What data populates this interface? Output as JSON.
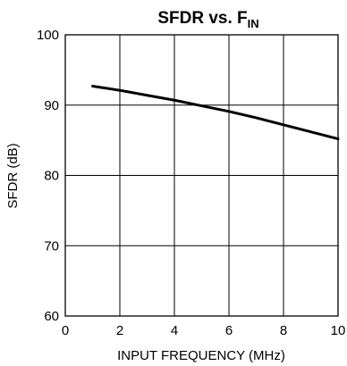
{
  "chart_data": {
    "type": "line",
    "title": {
      "main": "SFDR vs. F",
      "subscript": "IN"
    },
    "xlabel": "INPUT FREQUENCY (MHz)",
    "ylabel": "SFDR (dB)",
    "xlim": [
      0,
      10
    ],
    "ylim": [
      60,
      100
    ],
    "x_ticks": [
      0,
      2,
      4,
      6,
      8,
      10
    ],
    "y_ticks": [
      60,
      70,
      80,
      90,
      100
    ],
    "grid": true,
    "legend": "none",
    "line_color": "#000000",
    "series": [
      {
        "x": [
          1,
          2,
          3,
          4,
          5,
          6,
          7,
          8,
          9,
          10
        ],
        "y": [
          92.7,
          92.1,
          91.4,
          90.7,
          89.9,
          89.1,
          88.2,
          87.2,
          86.2,
          85.2
        ]
      }
    ]
  }
}
